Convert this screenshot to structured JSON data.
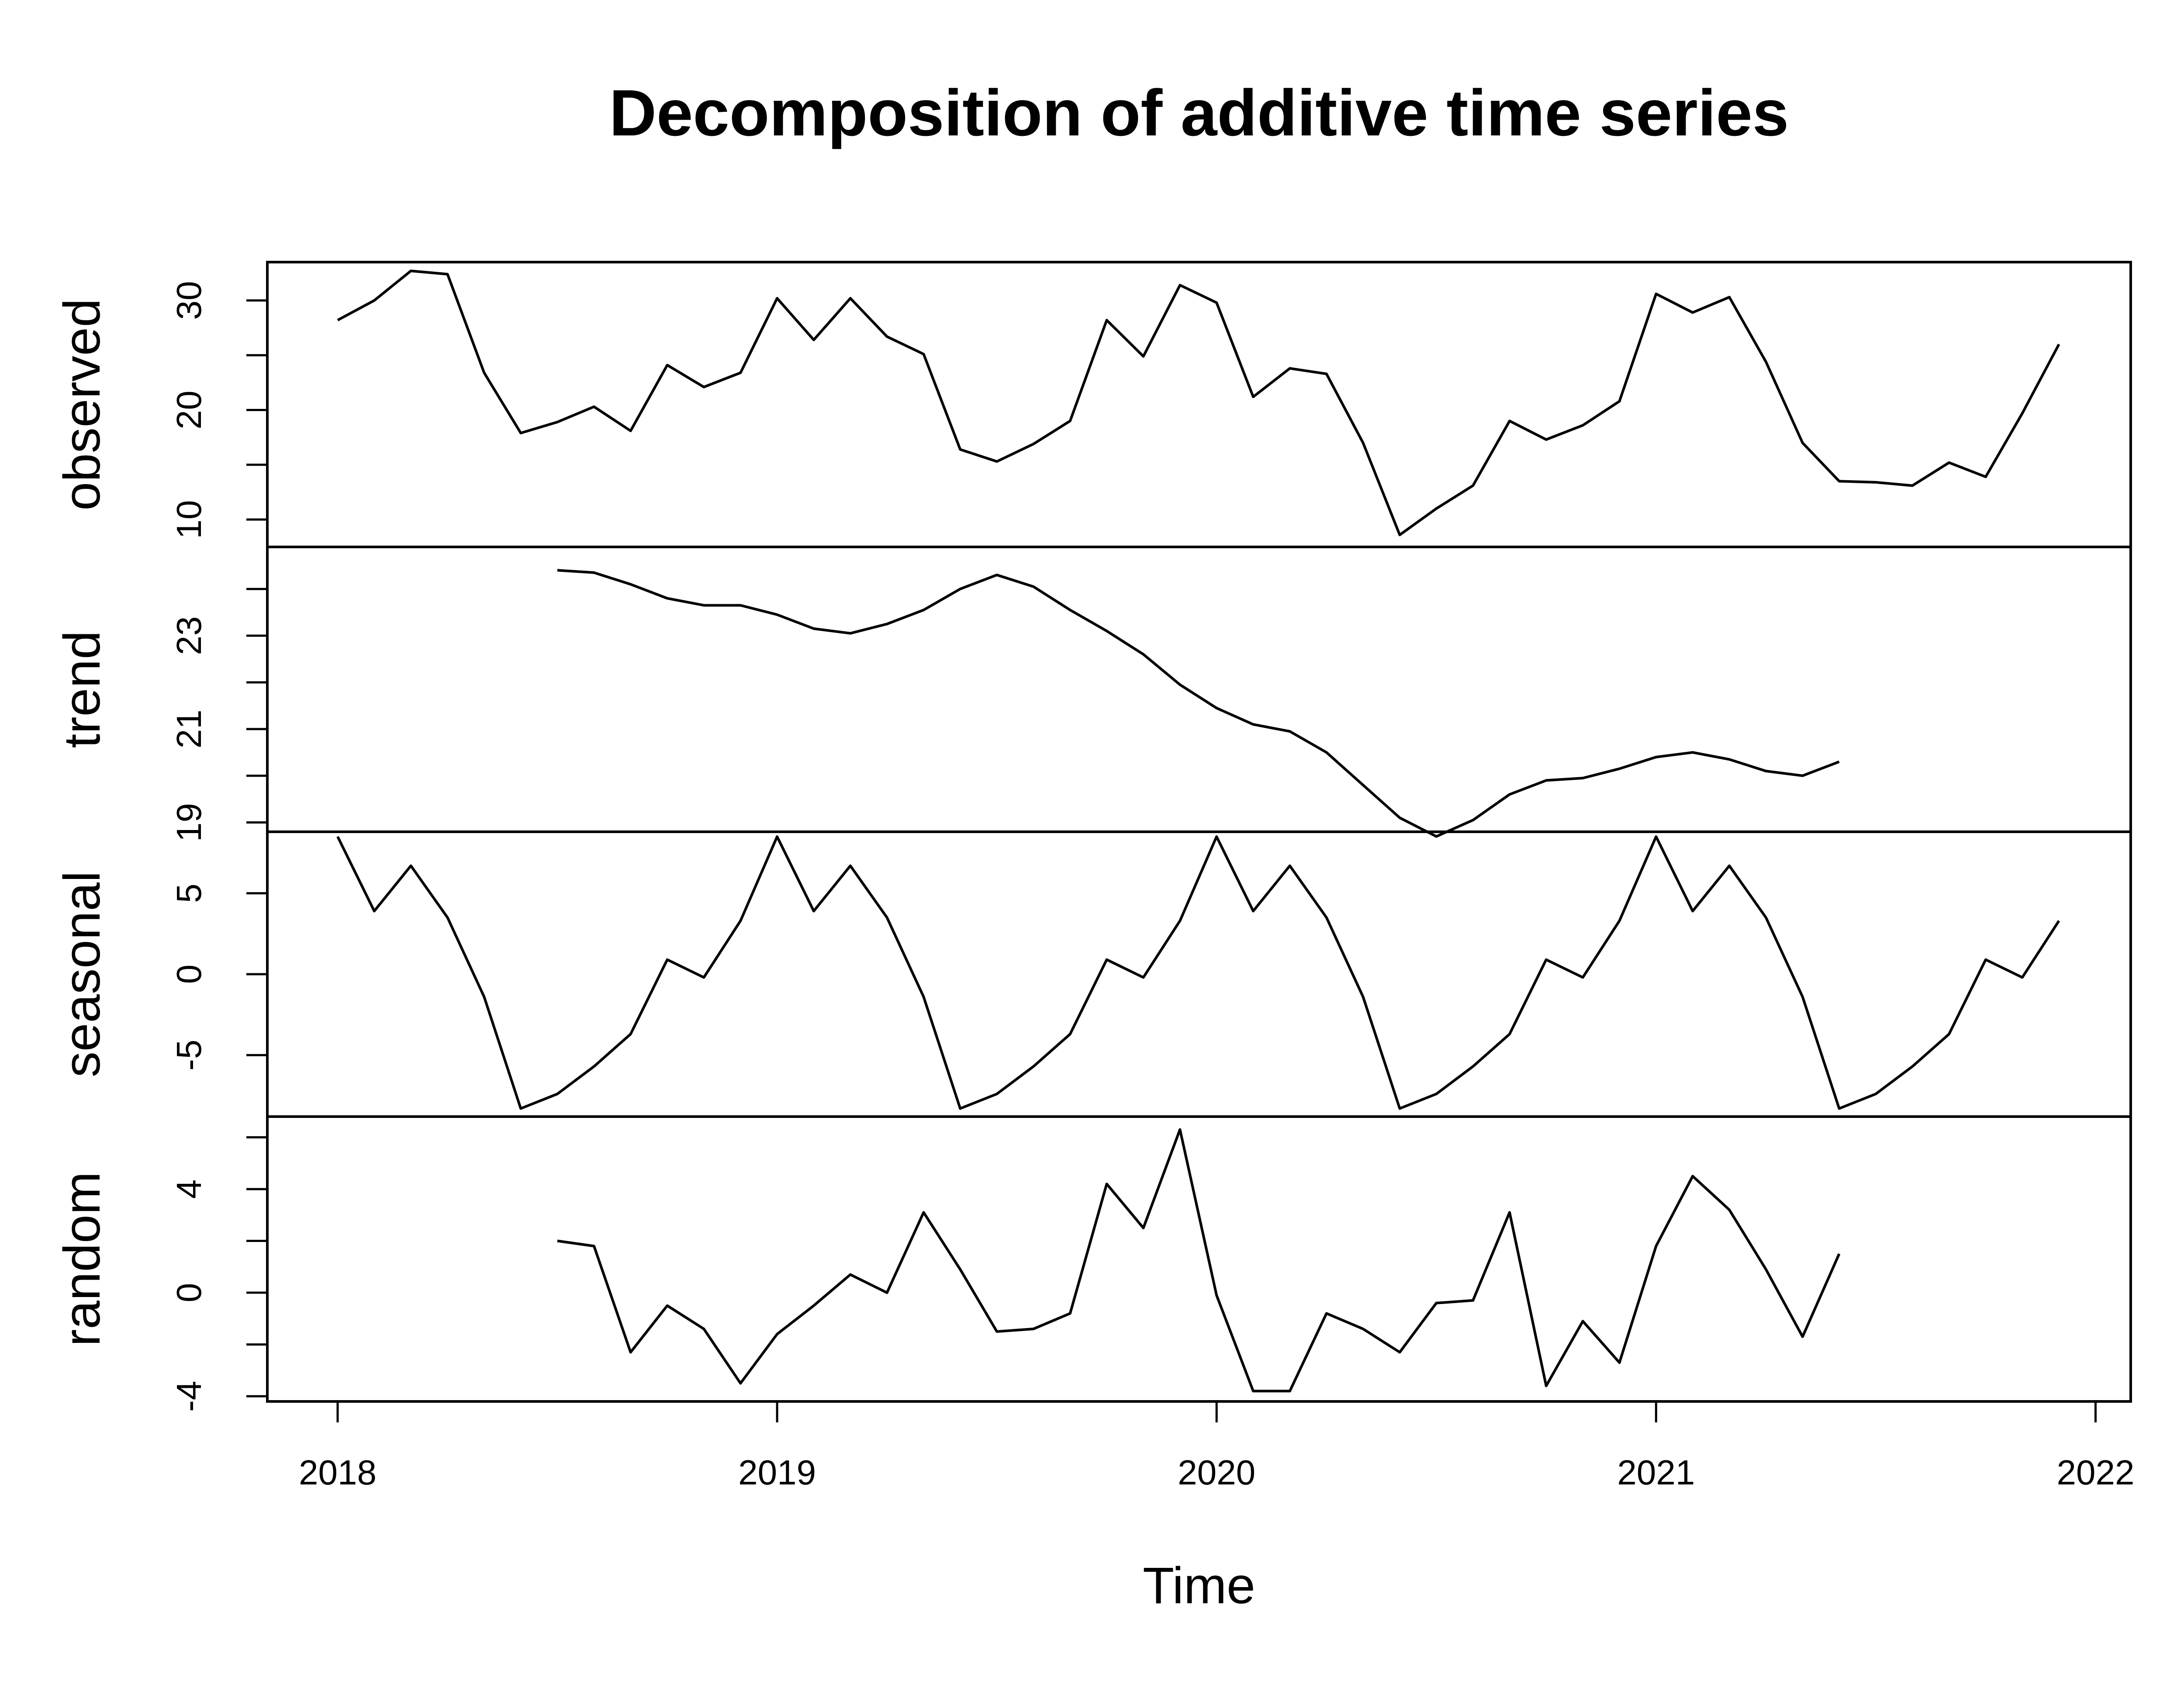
{
  "chart_data": {
    "type": "line",
    "title": "Decomposition of additive time series",
    "xlabel": "Time",
    "grid": false,
    "xlim": [
      2017.84,
      2022.08
    ],
    "x_ticks": [
      "2018",
      "2019",
      "2020",
      "2021",
      "2022"
    ],
    "x_tick_values": [
      2018,
      2019,
      2020,
      2021,
      2022
    ],
    "time_start": 2018,
    "frequency": 12,
    "panels": [
      {
        "name": "observed",
        "ylim": [
          7.5,
          33.5
        ],
        "ticks": [
          10,
          20,
          30
        ],
        "minor_ticks": [
          15,
          25
        ],
        "values": [
          28.2,
          30,
          32.7,
          32.4,
          23.4,
          17.9,
          18.9,
          20.3,
          18.1,
          24.1,
          22.1,
          23.4,
          30.2,
          26.4,
          30.2,
          26.7,
          25.1,
          16.4,
          15.3,
          16.9,
          19.0,
          28.2,
          24.9,
          31.4,
          29.8,
          21.2,
          23.8,
          23.3,
          17.0,
          8.6,
          11.0,
          13.1,
          19.0,
          17.3,
          18.6,
          20.8,
          30.6,
          28.9,
          30.3,
          24.4,
          17.0,
          13.5,
          13.4,
          13.1,
          15.2,
          13.9,
          19.7,
          26.0
        ]
      },
      {
        "name": "trend",
        "ylim": [
          18.8,
          24.9
        ],
        "ticks": [
          19,
          21,
          23
        ],
        "minor_ticks": [
          20,
          22,
          24
        ],
        "start_index": 6,
        "values": [
          24.4,
          24.35,
          24.1,
          23.8,
          23.65,
          23.65,
          23.45,
          23.15,
          23.05,
          23.25,
          23.55,
          24.0,
          24.3,
          24.05,
          23.55,
          23.1,
          22.6,
          21.95,
          21.45,
          21.1,
          20.95,
          20.5,
          19.8,
          19.1,
          18.7,
          19.05,
          19.6,
          19.9,
          19.95,
          20.15,
          20.4,
          20.5,
          20.35,
          20.1,
          20.0,
          20.3
        ]
      },
      {
        "name": "seasonal",
        "ylim": [
          -8.8,
          8.8
        ],
        "ticks": [
          -5,
          0,
          5
        ],
        "values": [
          8.5,
          3.9,
          6.7,
          3.5,
          -1.4,
          -8.3,
          -7.4,
          -5.7,
          -3.7,
          0.9,
          -0.2,
          3.3,
          8.5,
          3.9,
          6.7,
          3.5,
          -1.4,
          -8.3,
          -7.4,
          -5.7,
          -3.7,
          0.9,
          -0.2,
          3.3,
          8.5,
          3.9,
          6.7,
          3.5,
          -1.4,
          -8.3,
          -7.4,
          -5.7,
          -3.7,
          0.9,
          -0.2,
          3.3,
          8.5,
          3.9,
          6.7,
          3.5,
          -1.4,
          -8.3,
          -7.4,
          -5.7,
          -3.7,
          0.9,
          -0.2,
          3.3
        ]
      },
      {
        "name": "random",
        "ylim": [
          -4.2,
          6.8
        ],
        "ticks": [
          -4,
          0,
          4
        ],
        "minor_ticks": [
          -2,
          2,
          6
        ],
        "start_index": 6,
        "values": [
          2.0,
          1.8,
          -2.3,
          -0.5,
          -1.4,
          -3.5,
          -1.6,
          -0.5,
          0.7,
          0.0,
          3.1,
          0.9,
          -1.5,
          -1.4,
          -0.8,
          4.2,
          2.5,
          6.3,
          -0.1,
          -3.8,
          -3.8,
          -0.8,
          -1.4,
          -2.3,
          -0.4,
          -0.3,
          3.1,
          -3.6,
          -1.1,
          -2.7,
          1.8,
          4.5,
          3.2,
          0.9,
          -1.7,
          1.5
        ]
      }
    ]
  }
}
